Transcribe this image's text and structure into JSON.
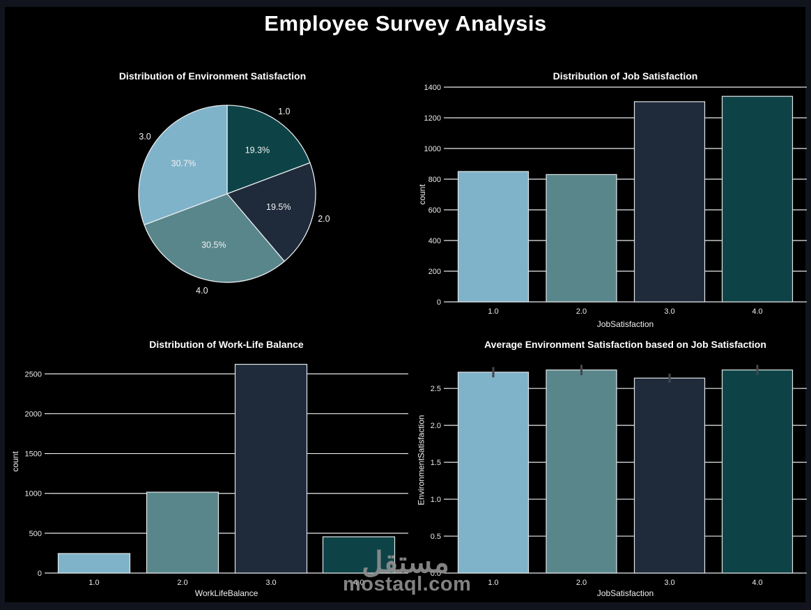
{
  "page": {
    "main_title": "Employee Survey Analysis"
  },
  "watermark": {
    "logo_text": "مستقل",
    "site_text": "mostaql.com"
  },
  "style": {
    "background": "#11141c",
    "panel": "#000000",
    "palette": [
      "#7fb3c9",
      "#58868b",
      "#1f2b3a",
      "#0d4347"
    ],
    "grid_color": "#e9ecef",
    "bar_edge_color": "#e3e7ea",
    "error_bar_color": "#43474c",
    "tick_text_color": "#ececec",
    "label_text_color": "#f1f1f1",
    "title_color": "#ffffff",
    "watermark_color": "#8e8e8e"
  },
  "chart_data": [
    {
      "id": "environment-satisfaction-pie",
      "type": "pie",
      "title": "Distribution of Environment Satisfaction",
      "start_at": "top",
      "direction": "clockwise",
      "slices": [
        {
          "label": "1.0",
          "pct": 19.3,
          "color": "#0d4347"
        },
        {
          "label": "2.0",
          "pct": 19.5,
          "color": "#1f2b3a"
        },
        {
          "label": "4.0",
          "pct": 30.5,
          "color": "#58868b"
        },
        {
          "label": "3.0",
          "pct": 30.7,
          "color": "#7fb3c9"
        }
      ]
    },
    {
      "id": "job-satisfaction-bar",
      "type": "bar",
      "title": "Distribution of Job Satisfaction",
      "xlabel": "JobSatisfaction",
      "ylabel": "count",
      "categories": [
        "1.0",
        "2.0",
        "3.0",
        "4.0"
      ],
      "values": [
        850,
        830,
        1305,
        1340
      ],
      "ylim": [
        0,
        1400
      ],
      "grid": true,
      "yticks": [
        {
          "v": 0,
          "label": "0"
        },
        {
          "v": 200,
          "label": "200"
        },
        {
          "v": 400,
          "label": "400"
        },
        {
          "v": 600,
          "label": "600"
        },
        {
          "v": 800,
          "label": "800"
        },
        {
          "v": 1000,
          "label": "1000"
        },
        {
          "v": 1200,
          "label": "1200"
        },
        {
          "v": 1400,
          "label": "1400"
        }
      ]
    },
    {
      "id": "work-life-balance-bar",
      "type": "bar",
      "title": "Distribution of Work-Life Balance",
      "xlabel": "WorkLifeBalance",
      "ylabel": "count",
      "categories": [
        "1.0",
        "2.0",
        "3.0",
        "4.0"
      ],
      "values": [
        245,
        1015,
        2620,
        455
      ],
      "ylim": [
        0,
        2660
      ],
      "grid": true,
      "yticks": [
        {
          "v": 0,
          "label": "0"
        },
        {
          "v": 500,
          "label": "500"
        },
        {
          "v": 1000,
          "label": "1000"
        },
        {
          "v": 1500,
          "label": "1500"
        },
        {
          "v": 2000,
          "label": "2000"
        },
        {
          "v": 2500,
          "label": "2500"
        }
      ]
    },
    {
      "id": "avg-environment-by-job-bar",
      "type": "bar",
      "title": "Average Environment Satisfaction based on Job Satisfaction",
      "xlabel": "JobSatisfaction",
      "ylabel": "EnvironmentSatisfaction",
      "categories": [
        "1.0",
        "2.0",
        "3.0",
        "4.0"
      ],
      "values": [
        2.72,
        2.75,
        2.64,
        2.75
      ],
      "errors": [
        0.07,
        0.07,
        0.06,
        0.07
      ],
      "ylim": [
        0,
        2.87
      ],
      "grid": true,
      "yticks": [
        {
          "v": 0,
          "label": "0.0"
        },
        {
          "v": 0.5,
          "label": "0.5"
        },
        {
          "v": 1,
          "label": "1.0"
        },
        {
          "v": 1.5,
          "label": "1.5"
        },
        {
          "v": 2,
          "label": "2.0"
        },
        {
          "v": 2.5,
          "label": "2.5"
        }
      ]
    }
  ]
}
